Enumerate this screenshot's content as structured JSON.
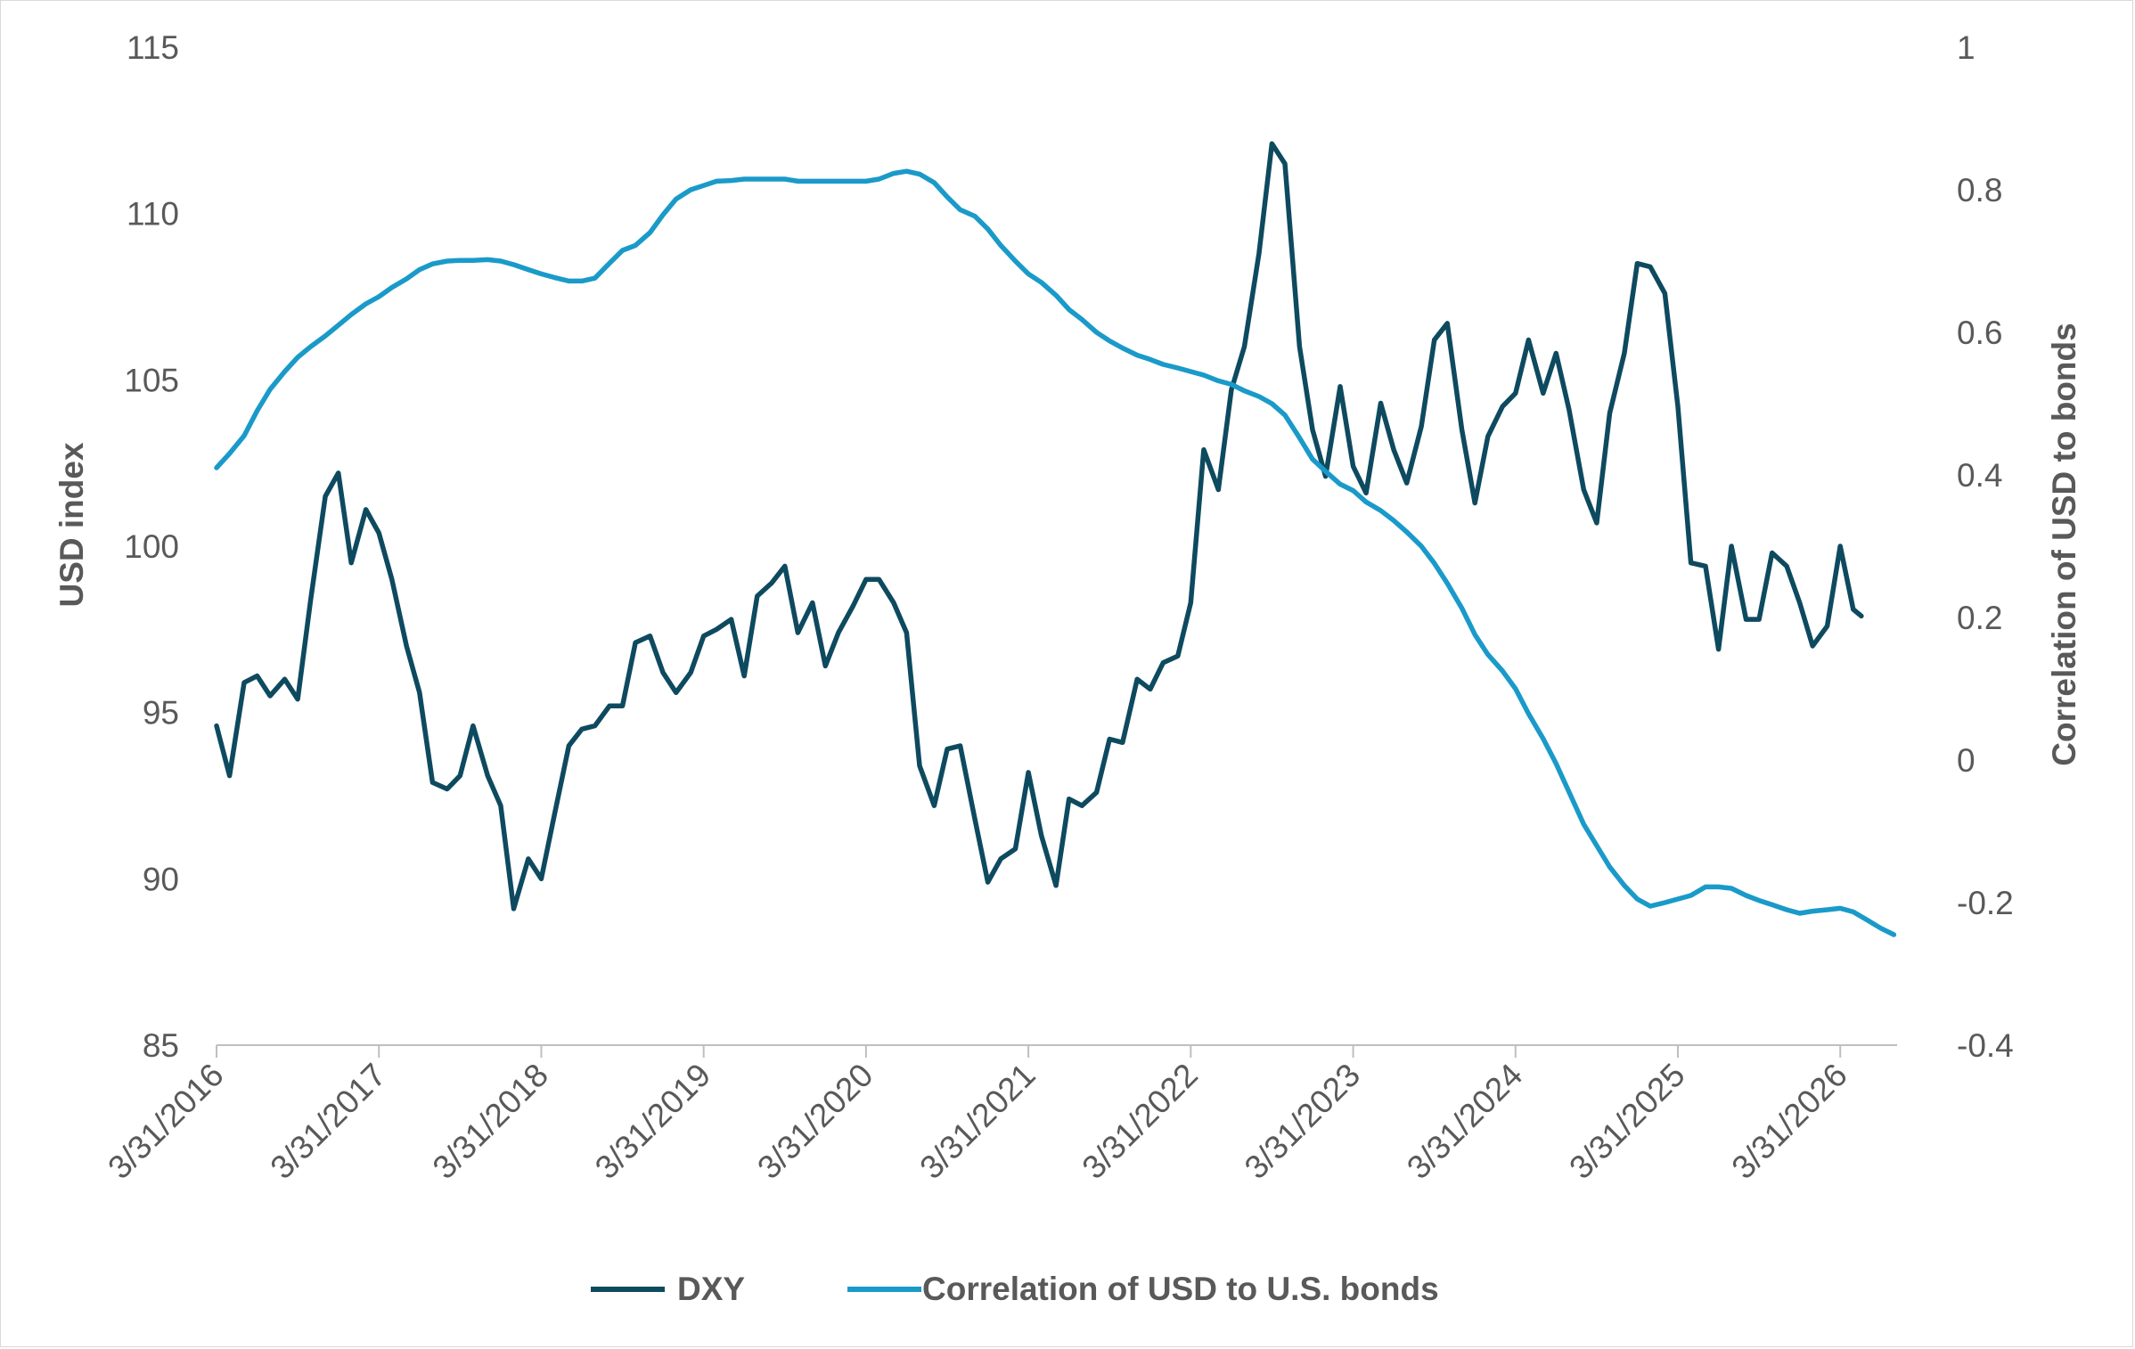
{
  "chart_data": {
    "type": "line",
    "title": "",
    "xlabel": "",
    "ylabel": "USD index",
    "y2label": "Correlation of USD to bonds",
    "ylim": [
      85,
      115
    ],
    "y2lim": [
      -0.4,
      1
    ],
    "yticks": [
      "85",
      "90",
      "95",
      "100",
      "105",
      "110",
      "115"
    ],
    "y2ticks": [
      "-0.4",
      "-0.2",
      "0",
      "0.2",
      "0.4",
      "0.6",
      "0.8",
      "1"
    ],
    "xticks": [
      "3/31/2016",
      "3/31/2017",
      "3/31/2018",
      "3/31/2019",
      "3/31/2020",
      "3/31/2021",
      "3/31/2022",
      "3/31/2023",
      "3/31/2024",
      "3/31/2025",
      "3/31/2026"
    ],
    "grid": false,
    "legend": "bottom",
    "series": [
      {
        "name": "DXY",
        "axis": "left",
        "color": "#0e4a5f",
        "points": [
          [
            2016.25,
            94.6
          ],
          [
            2016.33,
            93.1
          ],
          [
            2016.42,
            95.9
          ],
          [
            2016.5,
            96.1
          ],
          [
            2016.58,
            95.5
          ],
          [
            2016.67,
            96.0
          ],
          [
            2016.75,
            95.4
          ],
          [
            2016.83,
            98.4
          ],
          [
            2016.92,
            101.5
          ],
          [
            2017.0,
            102.2
          ],
          [
            2017.08,
            99.5
          ],
          [
            2017.17,
            101.1
          ],
          [
            2017.25,
            100.4
          ],
          [
            2017.33,
            99.0
          ],
          [
            2017.42,
            97.0
          ],
          [
            2017.5,
            95.6
          ],
          [
            2017.58,
            92.9
          ],
          [
            2017.67,
            92.7
          ],
          [
            2017.75,
            93.1
          ],
          [
            2017.83,
            94.6
          ],
          [
            2017.92,
            93.1
          ],
          [
            2018.0,
            92.2
          ],
          [
            2018.08,
            89.1
          ],
          [
            2018.17,
            90.6
          ],
          [
            2018.25,
            90.0
          ],
          [
            2018.33,
            91.9
          ],
          [
            2018.42,
            94.0
          ],
          [
            2018.5,
            94.5
          ],
          [
            2018.58,
            94.6
          ],
          [
            2018.67,
            95.2
          ],
          [
            2018.75,
            95.2
          ],
          [
            2018.83,
            97.1
          ],
          [
            2018.92,
            97.3
          ],
          [
            2019.0,
            96.2
          ],
          [
            2019.08,
            95.6
          ],
          [
            2019.17,
            96.2
          ],
          [
            2019.25,
            97.3
          ],
          [
            2019.33,
            97.5
          ],
          [
            2019.42,
            97.8
          ],
          [
            2019.5,
            96.1
          ],
          [
            2019.58,
            98.5
          ],
          [
            2019.67,
            98.9
          ],
          [
            2019.75,
            99.4
          ],
          [
            2019.83,
            97.4
          ],
          [
            2019.92,
            98.3
          ],
          [
            2020.0,
            96.4
          ],
          [
            2020.08,
            97.4
          ],
          [
            2020.17,
            98.2
          ],
          [
            2020.25,
            99.0
          ],
          [
            2020.33,
            99.0
          ],
          [
            2020.42,
            98.3
          ],
          [
            2020.5,
            97.4
          ],
          [
            2020.58,
            93.4
          ],
          [
            2020.67,
            92.2
          ],
          [
            2020.75,
            93.9
          ],
          [
            2020.83,
            94.0
          ],
          [
            2020.92,
            91.8
          ],
          [
            2021.0,
            89.9
          ],
          [
            2021.08,
            90.6
          ],
          [
            2021.17,
            90.9
          ],
          [
            2021.25,
            93.2
          ],
          [
            2021.33,
            91.3
          ],
          [
            2021.42,
            89.8
          ],
          [
            2021.5,
            92.4
          ],
          [
            2021.58,
            92.2
          ],
          [
            2021.67,
            92.6
          ],
          [
            2021.75,
            94.2
          ],
          [
            2021.83,
            94.1
          ],
          [
            2021.92,
            96.0
          ],
          [
            2022.0,
            95.7
          ],
          [
            2022.08,
            96.5
          ],
          [
            2022.17,
            96.7
          ],
          [
            2022.25,
            98.3
          ],
          [
            2022.33,
            102.9
          ],
          [
            2022.42,
            101.7
          ],
          [
            2022.5,
            104.7
          ],
          [
            2022.58,
            106.0
          ],
          [
            2022.67,
            108.8
          ],
          [
            2022.75,
            112.1
          ],
          [
            2022.83,
            111.5
          ],
          [
            2022.92,
            106.0
          ],
          [
            2023.0,
            103.5
          ],
          [
            2023.08,
            102.1
          ],
          [
            2023.17,
            104.8
          ],
          [
            2023.25,
            102.4
          ],
          [
            2023.33,
            101.6
          ],
          [
            2023.42,
            104.3
          ],
          [
            2023.5,
            102.9
          ],
          [
            2023.58,
            101.9
          ],
          [
            2023.67,
            103.6
          ],
          [
            2023.75,
            106.2
          ],
          [
            2023.83,
            106.7
          ],
          [
            2023.92,
            103.5
          ],
          [
            2024.0,
            101.3
          ],
          [
            2024.08,
            103.3
          ],
          [
            2024.17,
            104.2
          ],
          [
            2024.25,
            104.6
          ],
          [
            2024.33,
            106.2
          ],
          [
            2024.42,
            104.6
          ],
          [
            2024.5,
            105.8
          ],
          [
            2024.58,
            104.1
          ],
          [
            2024.67,
            101.7
          ],
          [
            2024.75,
            100.7
          ],
          [
            2024.83,
            104.0
          ],
          [
            2024.92,
            105.8
          ],
          [
            2025.0,
            108.5
          ],
          [
            2025.08,
            108.4
          ],
          [
            2025.17,
            107.6
          ],
          [
            2025.25,
            104.2
          ],
          [
            2025.33,
            99.5
          ],
          [
            2025.42,
            99.4
          ],
          [
            2025.5,
            96.9
          ],
          [
            2025.58,
            100.0
          ],
          [
            2025.67,
            97.8
          ],
          [
            2025.75,
            97.8
          ],
          [
            2025.83,
            99.8
          ],
          [
            2025.92,
            99.4
          ],
          [
            2026.0,
            98.3
          ],
          [
            2026.08,
            97.0
          ],
          [
            2026.17,
            97.6
          ],
          [
            2026.25,
            100.0
          ],
          [
            2026.33,
            98.1
          ],
          [
            2026.38,
            97.9
          ]
        ]
      },
      {
        "name": "Correlation of USD to U.S. bonds",
        "axis": "right",
        "color": "#1a9ac9",
        "points": [
          [
            2016.25,
            0.41
          ],
          [
            2016.33,
            0.43
          ],
          [
            2016.42,
            0.455
          ],
          [
            2016.5,
            0.49
          ],
          [
            2016.58,
            0.52
          ],
          [
            2016.67,
            0.545
          ],
          [
            2016.75,
            0.565
          ],
          [
            2016.83,
            0.58
          ],
          [
            2016.92,
            0.595
          ],
          [
            2017.0,
            0.61
          ],
          [
            2017.08,
            0.625
          ],
          [
            2017.17,
            0.64
          ],
          [
            2017.25,
            0.65
          ],
          [
            2017.33,
            0.663
          ],
          [
            2017.42,
            0.675
          ],
          [
            2017.5,
            0.688
          ],
          [
            2017.58,
            0.696
          ],
          [
            2017.67,
            0.7
          ],
          [
            2017.75,
            0.701
          ],
          [
            2017.83,
            0.701
          ],
          [
            2017.92,
            0.702
          ],
          [
            2018.0,
            0.7
          ],
          [
            2018.08,
            0.695
          ],
          [
            2018.17,
            0.688
          ],
          [
            2018.25,
            0.682
          ],
          [
            2018.33,
            0.677
          ],
          [
            2018.42,
            0.672
          ],
          [
            2018.5,
            0.672
          ],
          [
            2018.58,
            0.676
          ],
          [
            2018.67,
            0.697
          ],
          [
            2018.75,
            0.715
          ],
          [
            2018.83,
            0.722
          ],
          [
            2018.92,
            0.74
          ],
          [
            2019.0,
            0.765
          ],
          [
            2019.08,
            0.787
          ],
          [
            2019.17,
            0.8
          ],
          [
            2019.25,
            0.806
          ],
          [
            2019.33,
            0.812
          ],
          [
            2019.42,
            0.813
          ],
          [
            2019.5,
            0.815
          ],
          [
            2019.58,
            0.815
          ],
          [
            2019.67,
            0.815
          ],
          [
            2019.75,
            0.815
          ],
          [
            2019.83,
            0.812
          ],
          [
            2019.92,
            0.812
          ],
          [
            2020.0,
            0.812
          ],
          [
            2020.08,
            0.812
          ],
          [
            2020.17,
            0.812
          ],
          [
            2020.25,
            0.812
          ],
          [
            2020.33,
            0.815
          ],
          [
            2020.42,
            0.823
          ],
          [
            2020.5,
            0.826
          ],
          [
            2020.58,
            0.822
          ],
          [
            2020.67,
            0.81
          ],
          [
            2020.75,
            0.79
          ],
          [
            2020.83,
            0.772
          ],
          [
            2020.92,
            0.763
          ],
          [
            2021.0,
            0.745
          ],
          [
            2021.08,
            0.722
          ],
          [
            2021.17,
            0.7
          ],
          [
            2021.25,
            0.682
          ],
          [
            2021.33,
            0.67
          ],
          [
            2021.42,
            0.652
          ],
          [
            2021.5,
            0.632
          ],
          [
            2021.58,
            0.618
          ],
          [
            2021.67,
            0.6
          ],
          [
            2021.75,
            0.588
          ],
          [
            2021.83,
            0.578
          ],
          [
            2021.92,
            0.568
          ],
          [
            2022.0,
            0.562
          ],
          [
            2022.08,
            0.555
          ],
          [
            2022.17,
            0.55
          ],
          [
            2022.25,
            0.545
          ],
          [
            2022.33,
            0.54
          ],
          [
            2022.42,
            0.532
          ],
          [
            2022.5,
            0.527
          ],
          [
            2022.58,
            0.518
          ],
          [
            2022.67,
            0.51
          ],
          [
            2022.75,
            0.5
          ],
          [
            2022.83,
            0.484
          ],
          [
            2022.92,
            0.452
          ],
          [
            2023.0,
            0.422
          ],
          [
            2023.08,
            0.405
          ],
          [
            2023.17,
            0.387
          ],
          [
            2023.25,
            0.378
          ],
          [
            2023.33,
            0.362
          ],
          [
            2023.42,
            0.35
          ],
          [
            2023.5,
            0.336
          ],
          [
            2023.58,
            0.32
          ],
          [
            2023.67,
            0.3
          ],
          [
            2023.75,
            0.276
          ],
          [
            2023.83,
            0.248
          ],
          [
            2023.92,
            0.213
          ],
          [
            2024.0,
            0.176
          ],
          [
            2024.08,
            0.148
          ],
          [
            2024.17,
            0.125
          ],
          [
            2024.25,
            0.1
          ],
          [
            2024.33,
            0.065
          ],
          [
            2024.42,
            0.03
          ],
          [
            2024.5,
            -0.005
          ],
          [
            2024.58,
            -0.045
          ],
          [
            2024.67,
            -0.09
          ],
          [
            2024.75,
            -0.12
          ],
          [
            2024.83,
            -0.15
          ],
          [
            2024.92,
            -0.176
          ],
          [
            2025.0,
            -0.195
          ],
          [
            2025.08,
            -0.205
          ],
          [
            2025.17,
            -0.2
          ],
          [
            2025.25,
            -0.195
          ],
          [
            2025.33,
            -0.19
          ],
          [
            2025.42,
            -0.178
          ],
          [
            2025.5,
            -0.178
          ],
          [
            2025.58,
            -0.18
          ],
          [
            2025.67,
            -0.19
          ],
          [
            2025.75,
            -0.197
          ],
          [
            2025.83,
            -0.203
          ],
          [
            2025.92,
            -0.21
          ],
          [
            2026.0,
            -0.215
          ],
          [
            2026.08,
            -0.212
          ],
          [
            2026.17,
            -0.21
          ],
          [
            2026.25,
            -0.208
          ],
          [
            2026.33,
            -0.213
          ],
          [
            2026.42,
            -0.225
          ],
          [
            2026.5,
            -0.236
          ],
          [
            2026.58,
            -0.245
          ]
        ]
      }
    ]
  }
}
